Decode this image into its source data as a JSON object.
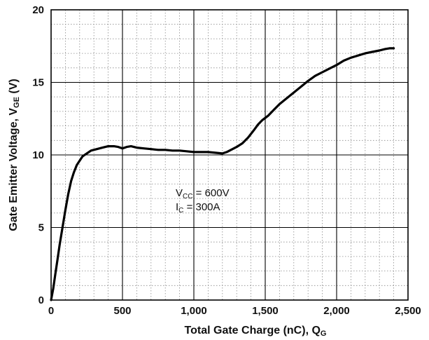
{
  "chart_data": {
    "type": "line",
    "xlabel": "Total Gate Charge (nC), Q",
    "xlabel_sub": "G",
    "ylabel": "Gate Emitter Voltage, V",
    "ylabel_sub": "GE",
    "ylabel_suffix": " (V)",
    "xlim": [
      0,
      2500
    ],
    "ylim": [
      0,
      20
    ],
    "x_ticks": [
      0,
      500,
      1000,
      1500,
      2000,
      2500
    ],
    "x_tick_labels": [
      "0",
      "500",
      "1,000",
      "1,500",
      "2,000",
      "2,500"
    ],
    "y_ticks": [
      0,
      5,
      10,
      15,
      20
    ],
    "y_tick_labels": [
      "0",
      "5",
      "10",
      "15",
      "20"
    ],
    "x_minor_step": 100,
    "y_minor_step": 1,
    "grid": true,
    "series": [
      {
        "x": [
          0,
          15,
          30,
          45,
          60,
          80,
          100,
          120,
          140,
          160,
          180,
          200,
          220,
          250,
          280,
          320,
          360,
          400,
          440,
          470,
          500,
          530,
          560,
          600,
          650,
          700,
          750,
          800,
          850,
          900,
          950,
          1000,
          1050,
          1100,
          1150,
          1200,
          1230,
          1260,
          1300,
          1340,
          1380,
          1420,
          1450,
          1480,
          1520,
          1560,
          1600,
          1650,
          1700,
          1750,
          1800,
          1850,
          1900,
          1950,
          2000,
          2050,
          2100,
          2150,
          2200,
          2250,
          2300,
          2340,
          2370,
          2400
        ],
        "y": [
          0,
          0.8,
          1.8,
          2.8,
          3.8,
          5.0,
          6.2,
          7.3,
          8.2,
          8.8,
          9.3,
          9.6,
          9.9,
          10.1,
          10.3,
          10.4,
          10.5,
          10.6,
          10.6,
          10.55,
          10.45,
          10.55,
          10.6,
          10.5,
          10.45,
          10.4,
          10.35,
          10.35,
          10.3,
          10.3,
          10.25,
          10.2,
          10.2,
          10.2,
          10.15,
          10.1,
          10.2,
          10.35,
          10.55,
          10.8,
          11.2,
          11.7,
          12.1,
          12.4,
          12.7,
          13.1,
          13.5,
          13.9,
          14.3,
          14.7,
          15.1,
          15.45,
          15.7,
          15.95,
          16.2,
          16.5,
          16.7,
          16.85,
          17.0,
          17.1,
          17.2,
          17.3,
          17.35,
          17.35
        ]
      }
    ],
    "annotations": [
      {
        "main": "V",
        "sub": "CC",
        "rest": " = 600V"
      },
      {
        "main": "I",
        "sub": "C",
        "rest": " = 300A"
      }
    ]
  }
}
